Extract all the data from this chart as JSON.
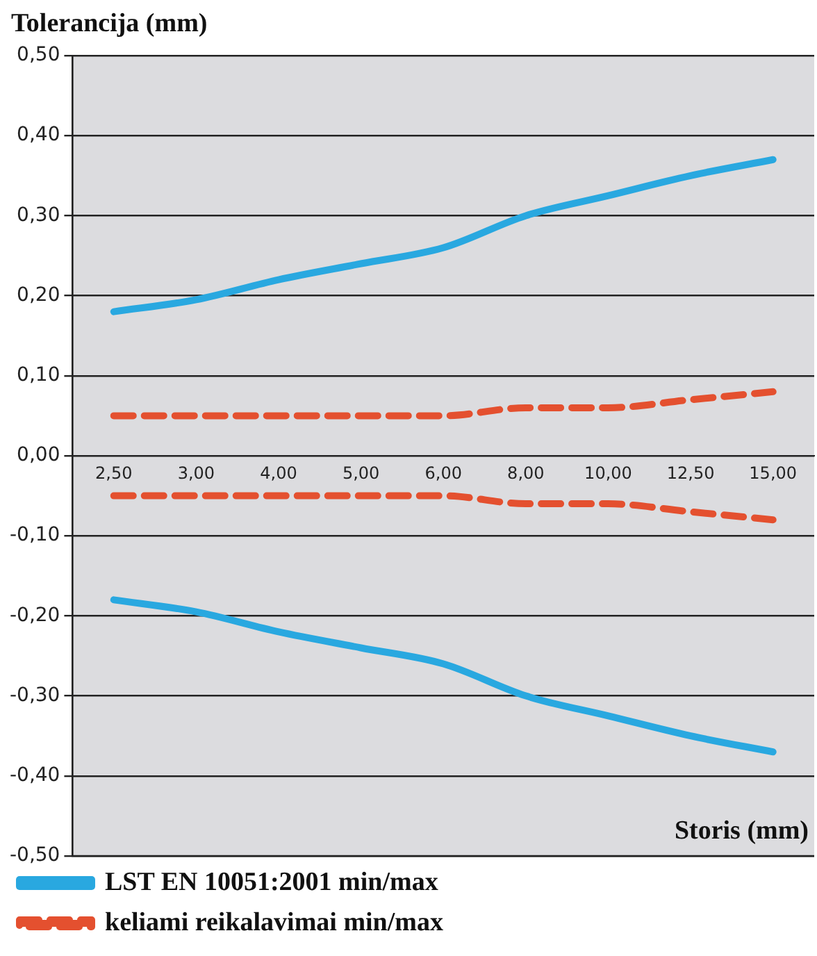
{
  "chart_data": {
    "type": "line",
    "xlabel": "Storis (mm)",
    "ylabel": "Tolerancija (mm)",
    "categories": [
      "2,50",
      "3,00",
      "4,00",
      "5,00",
      "6,00",
      "8,00",
      "10,00",
      "12,50",
      "15,00"
    ],
    "series": [
      {
        "name": "LST EN 10051:2001 min/max",
        "color": "#29a8e0",
        "line_style": "solid",
        "values": [
          0.18,
          0.195,
          0.22,
          0.24,
          0.26,
          0.3,
          0.325,
          0.35,
          0.37
        ]
      },
      {
        "color": "#29a8e0",
        "line_style": "solid",
        "values": [
          -0.18,
          -0.195,
          -0.22,
          -0.24,
          -0.26,
          -0.3,
          -0.325,
          -0.35,
          -0.37
        ]
      },
      {
        "name": "keliami reikalavimai min/max",
        "color": "#e4502f",
        "line_style": "dashed",
        "values": [
          0.05,
          0.05,
          0.05,
          0.05,
          0.05,
          0.06,
          0.06,
          0.07,
          0.08
        ]
      },
      {
        "color": "#e4502f",
        "line_style": "dashed",
        "values": [
          -0.05,
          -0.05,
          -0.05,
          -0.05,
          -0.05,
          -0.06,
          -0.06,
          -0.07,
          -0.08
        ]
      }
    ],
    "ylim": [
      -0.5,
      0.5
    ],
    "yticks": [
      {
        "value": -0.5,
        "label": "-0,50"
      },
      {
        "value": -0.4,
        "label": "-0,40"
      },
      {
        "value": -0.3,
        "label": "-0,30"
      },
      {
        "value": -0.2,
        "label": "-0,20"
      },
      {
        "value": -0.1,
        "label": "-0,10"
      },
      {
        "value": 0,
        "label": "0,00"
      },
      {
        "value": 0.1,
        "label": "0,10"
      },
      {
        "value": 0.2,
        "label": "0,20"
      },
      {
        "value": 0.3,
        "label": "0,30"
      },
      {
        "value": 0.4,
        "label": "0,40"
      },
      {
        "value": 0.5,
        "label": "0,50"
      }
    ],
    "grid": "y",
    "legend": "bottom",
    "marker": "none"
  }
}
